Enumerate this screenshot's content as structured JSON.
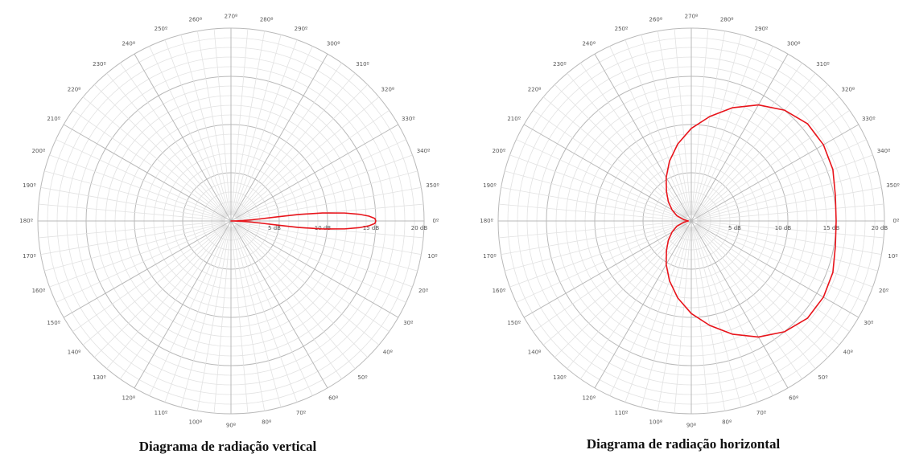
{
  "chart_data": [
    {
      "type": "polar",
      "title": "Diagrama de radiação vertical",
      "radial_unit": "dB",
      "radial_range": [
        0,
        20
      ],
      "radial_ticks": [
        {
          "value": 5,
          "label": "5 dB"
        },
        {
          "value": 10,
          "label": "10 dB"
        },
        {
          "value": 15,
          "label": "15 dB"
        },
        {
          "value": 20,
          "label": "20 dB"
        }
      ],
      "angle_ticks": [
        "0º",
        "10º",
        "20º",
        "30º",
        "40º",
        "50º",
        "60º",
        "70º",
        "80º",
        "90º",
        "100º",
        "110º",
        "120º",
        "130º",
        "140º",
        "150º",
        "160º",
        "170º",
        "180º",
        "190º",
        "200º",
        "210º",
        "220º",
        "230º",
        "240º",
        "250º",
        "260º",
        "270º",
        "280º",
        "290º",
        "300º",
        "310º",
        "320º",
        "330º",
        "340º",
        "350º"
      ],
      "angle_direction": "clockwise from right (0º at right, 90º at bottom)",
      "grid": true,
      "series_color": "#e8141b",
      "series": [
        {
          "theta": [
            0,
            1,
            2,
            3,
            4,
            5,
            5.5,
            5,
            4,
            3,
            2,
            1,
            0,
            -1,
            -2,
            -3,
            -4,
            -5,
            -5.5,
            -5,
            -4,
            -3,
            -2,
            -1,
            0
          ],
          "r": [
            15,
            14.9,
            14.3,
            13.3,
            11.8,
            9.5,
            7.0,
            4.5,
            3.0,
            2.0,
            1.3,
            0.7,
            0.0,
            0.7,
            1.3,
            2.0,
            3.0,
            4.5,
            7.0,
            9.5,
            11.8,
            13.3,
            14.3,
            14.9,
            15
          ]
        }
      ]
    },
    {
      "type": "polar",
      "title": "Diagrama de radiação horizontal",
      "radial_unit": "dB",
      "radial_range": [
        0,
        20
      ],
      "radial_ticks": [
        {
          "value": 5,
          "label": "5 dB"
        },
        {
          "value": 10,
          "label": "10 dB"
        },
        {
          "value": 15,
          "label": "15 dB"
        },
        {
          "value": 20,
          "label": "20 dB"
        }
      ],
      "angle_ticks": [
        "0º",
        "10º",
        "20º",
        "30º",
        "40º",
        "50º",
        "60º",
        "70º",
        "80º",
        "90º",
        "100º",
        "110º",
        "120º",
        "130º",
        "140º",
        "150º",
        "160º",
        "170º",
        "180º",
        "190º",
        "200º",
        "210º",
        "220º",
        "230º",
        "240º",
        "250º",
        "260º",
        "270º",
        "280º",
        "290º",
        "300º",
        "310º",
        "320º",
        "330º",
        "340º",
        "350º"
      ],
      "angle_direction": "clockwise from right (0º at right, 90º at bottom)",
      "grid": true,
      "series_color": "#e8141b",
      "series": [
        {
          "theta": [
            0,
            10,
            20,
            30,
            40,
            50,
            60,
            70,
            80,
            90,
            100,
            110,
            120,
            130,
            140,
            150,
            160,
            170,
            180,
            190,
            200,
            210,
            220,
            230,
            240,
            250,
            260,
            270,
            280,
            290,
            300,
            310,
            320,
            330,
            340,
            350,
            360
          ],
          "r": [
            15,
            15.15,
            15.6,
            15.8,
            15.7,
            15.0,
            13.9,
            12.5,
            11.0,
            9.6,
            8.1,
            6.6,
            5.2,
            4.0,
            3.1,
            2.3,
            1.6,
            0.8,
            0.3,
            0.8,
            1.6,
            2.3,
            3.1,
            4.0,
            5.2,
            6.6,
            8.1,
            9.6,
            11.0,
            12.5,
            13.9,
            15.0,
            15.7,
            15.8,
            15.6,
            15.15,
            15
          ]
        }
      ]
    }
  ]
}
